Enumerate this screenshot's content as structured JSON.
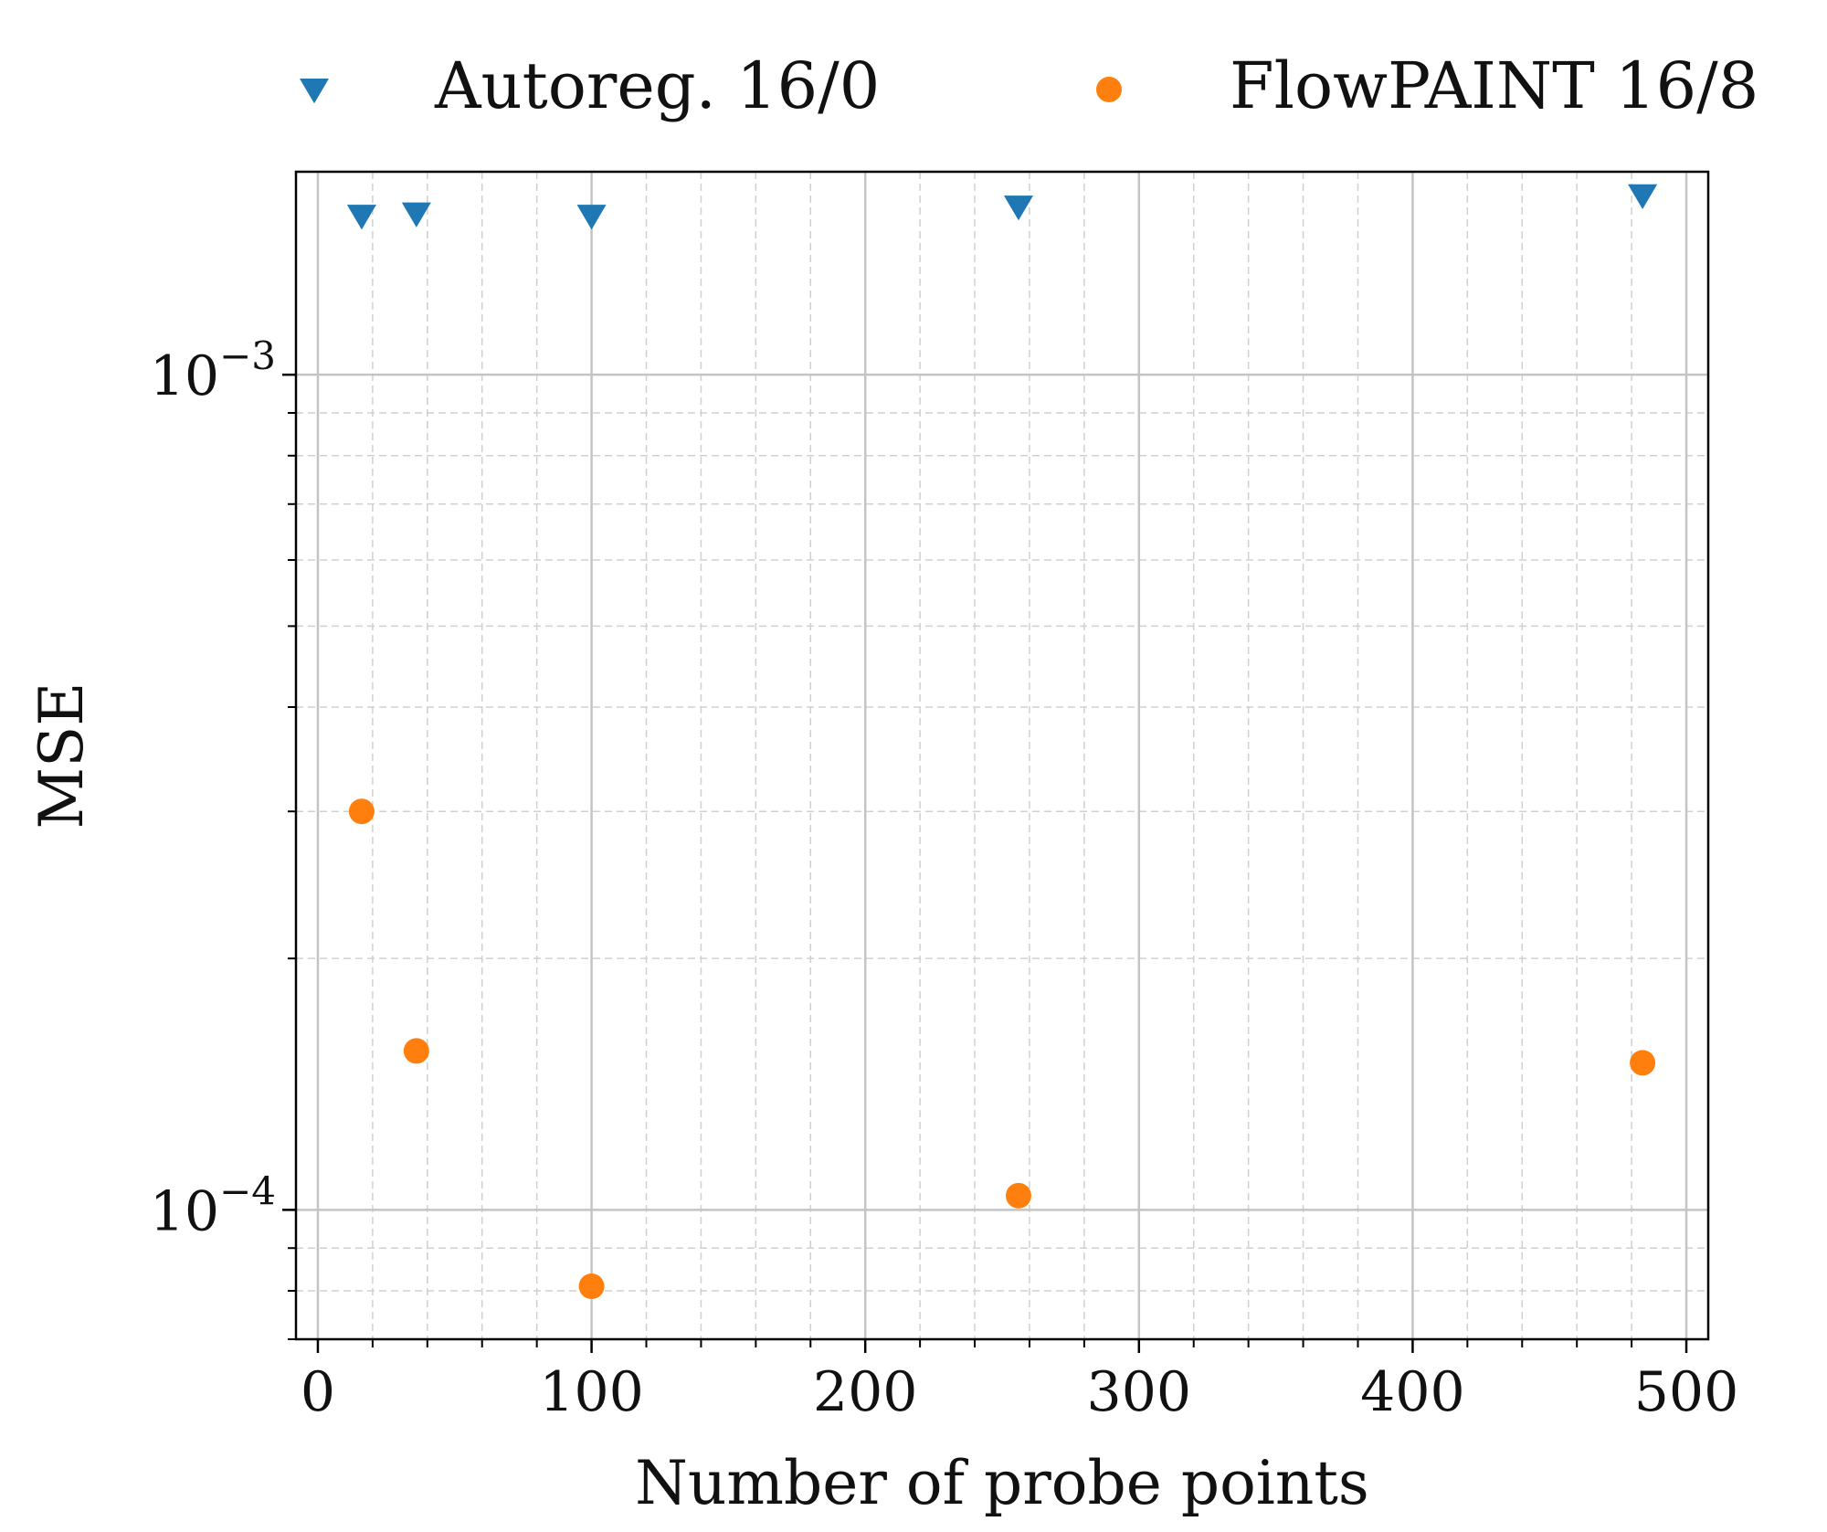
{
  "chart_data": {
    "type": "scatter",
    "xlabel": "Number of probe points",
    "ylabel": "MSE",
    "xlim": [
      -8,
      508
    ],
    "ylim": [
      7e-05,
      0.00175
    ],
    "y_scale": "log",
    "grid": true,
    "legend_placement": "top, outside plot",
    "x_ticks": [
      0,
      100,
      200,
      300,
      400,
      500
    ],
    "x_tick_labels": [
      "0",
      "100",
      "200",
      "300",
      "400",
      "500"
    ],
    "y_ticks": [
      {
        "value": 0.001,
        "base": "10",
        "exp": "−3"
      },
      {
        "value": 0.0001,
        "base": "10",
        "exp": "−4"
      }
    ],
    "series": [
      {
        "name": "Autoreg. 16/0",
        "marker": "triangle-down",
        "color": "#1f77b4",
        "x": [
          16,
          36,
          100,
          256,
          484
        ],
        "y": [
          0.00155,
          0.00156,
          0.00155,
          0.00159,
          0.00164
        ]
      },
      {
        "name": "FlowPAINT 16/8",
        "marker": "circle",
        "color": "#ff7f0e",
        "x": [
          16,
          36,
          100,
          256,
          484
        ],
        "y": [
          0.0003,
          0.000155,
          8.1e-05,
          0.000104,
          0.00015
        ]
      }
    ]
  }
}
